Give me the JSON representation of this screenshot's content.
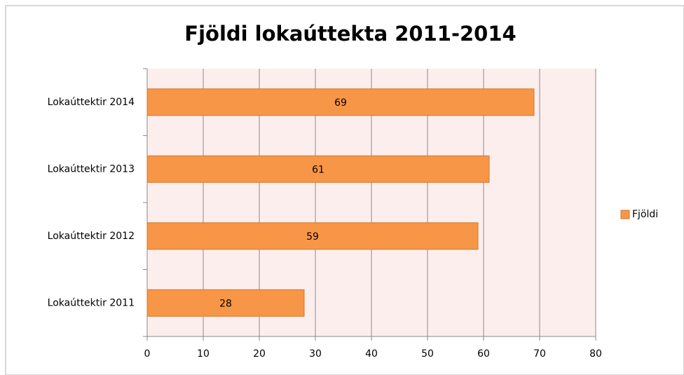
{
  "chart_data": {
    "type": "bar",
    "orientation": "horizontal",
    "title": "Fjöldi lokaúttekta 2011-2014",
    "categories": [
      "Lokaúttektir 2011",
      "Lokaúttektir 2012",
      "Lokaúttektir 2013",
      "Lokaúttektir 2014"
    ],
    "series": [
      {
        "name": "Fjöldi",
        "color": "#f79646",
        "values": [
          28,
          59,
          61,
          69
        ]
      }
    ],
    "xlim": [
      0,
      80
    ],
    "xticks": [
      0,
      10,
      20,
      30,
      40,
      50,
      60,
      70,
      80
    ],
    "grid": true,
    "legend": "right"
  }
}
